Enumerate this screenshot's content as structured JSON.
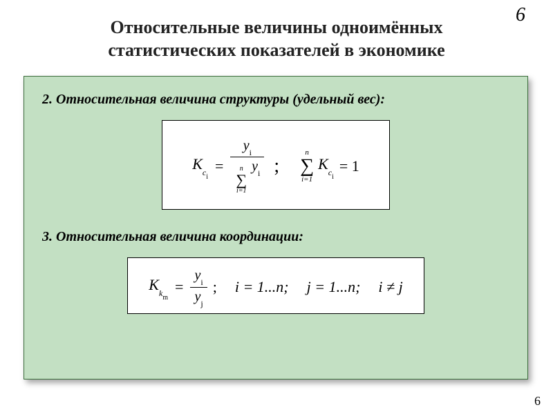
{
  "page": {
    "number_top": "6",
    "number_bottom": "6"
  },
  "title": {
    "line1": "Относительные величины одноимённых",
    "line2": "статистических показателей в экономике"
  },
  "section2": {
    "heading": "2. Относительная величина структуры (удельный вес):",
    "formula": {
      "lhs_base": "K",
      "lhs_sub": "c",
      "lhs_subsub": "i",
      "frac_num_base": "y",
      "frac_num_sub": "i",
      "denom_sum_upper": "n",
      "denom_sum_lower": "i=1",
      "denom_sum_body_base": "y",
      "denom_sum_body_sub": "i",
      "rhs_sum_upper": "n",
      "rhs_sum_lower": "i=1",
      "rhs_sum_body_base": "K",
      "rhs_sum_body_sub": "c",
      "rhs_sum_body_subsub": "i",
      "rhs_equals": "= 1"
    }
  },
  "section3": {
    "heading": "3. Относительная величина координации:",
    "formula": {
      "lhs_base": "K",
      "lhs_sub": "k",
      "lhs_subsub": "m",
      "frac_num_base": "y",
      "frac_num_sub": "i",
      "frac_den_base": "y",
      "frac_den_sub": "j",
      "i_range": "i = 1...n;",
      "j_range": "j = 1...n;",
      "ineq": "i ≠ j"
    }
  },
  "style": {
    "background": "#ffffff",
    "panel_bg": "#c3e0c3",
    "panel_border": "#3a6b3a",
    "shadow": "rgba(0,0,0,0.35)",
    "title_fontsize": 26,
    "heading_fontsize": 20,
    "formula_fontsize": 22,
    "slide_width": 800,
    "slide_height": 600
  }
}
